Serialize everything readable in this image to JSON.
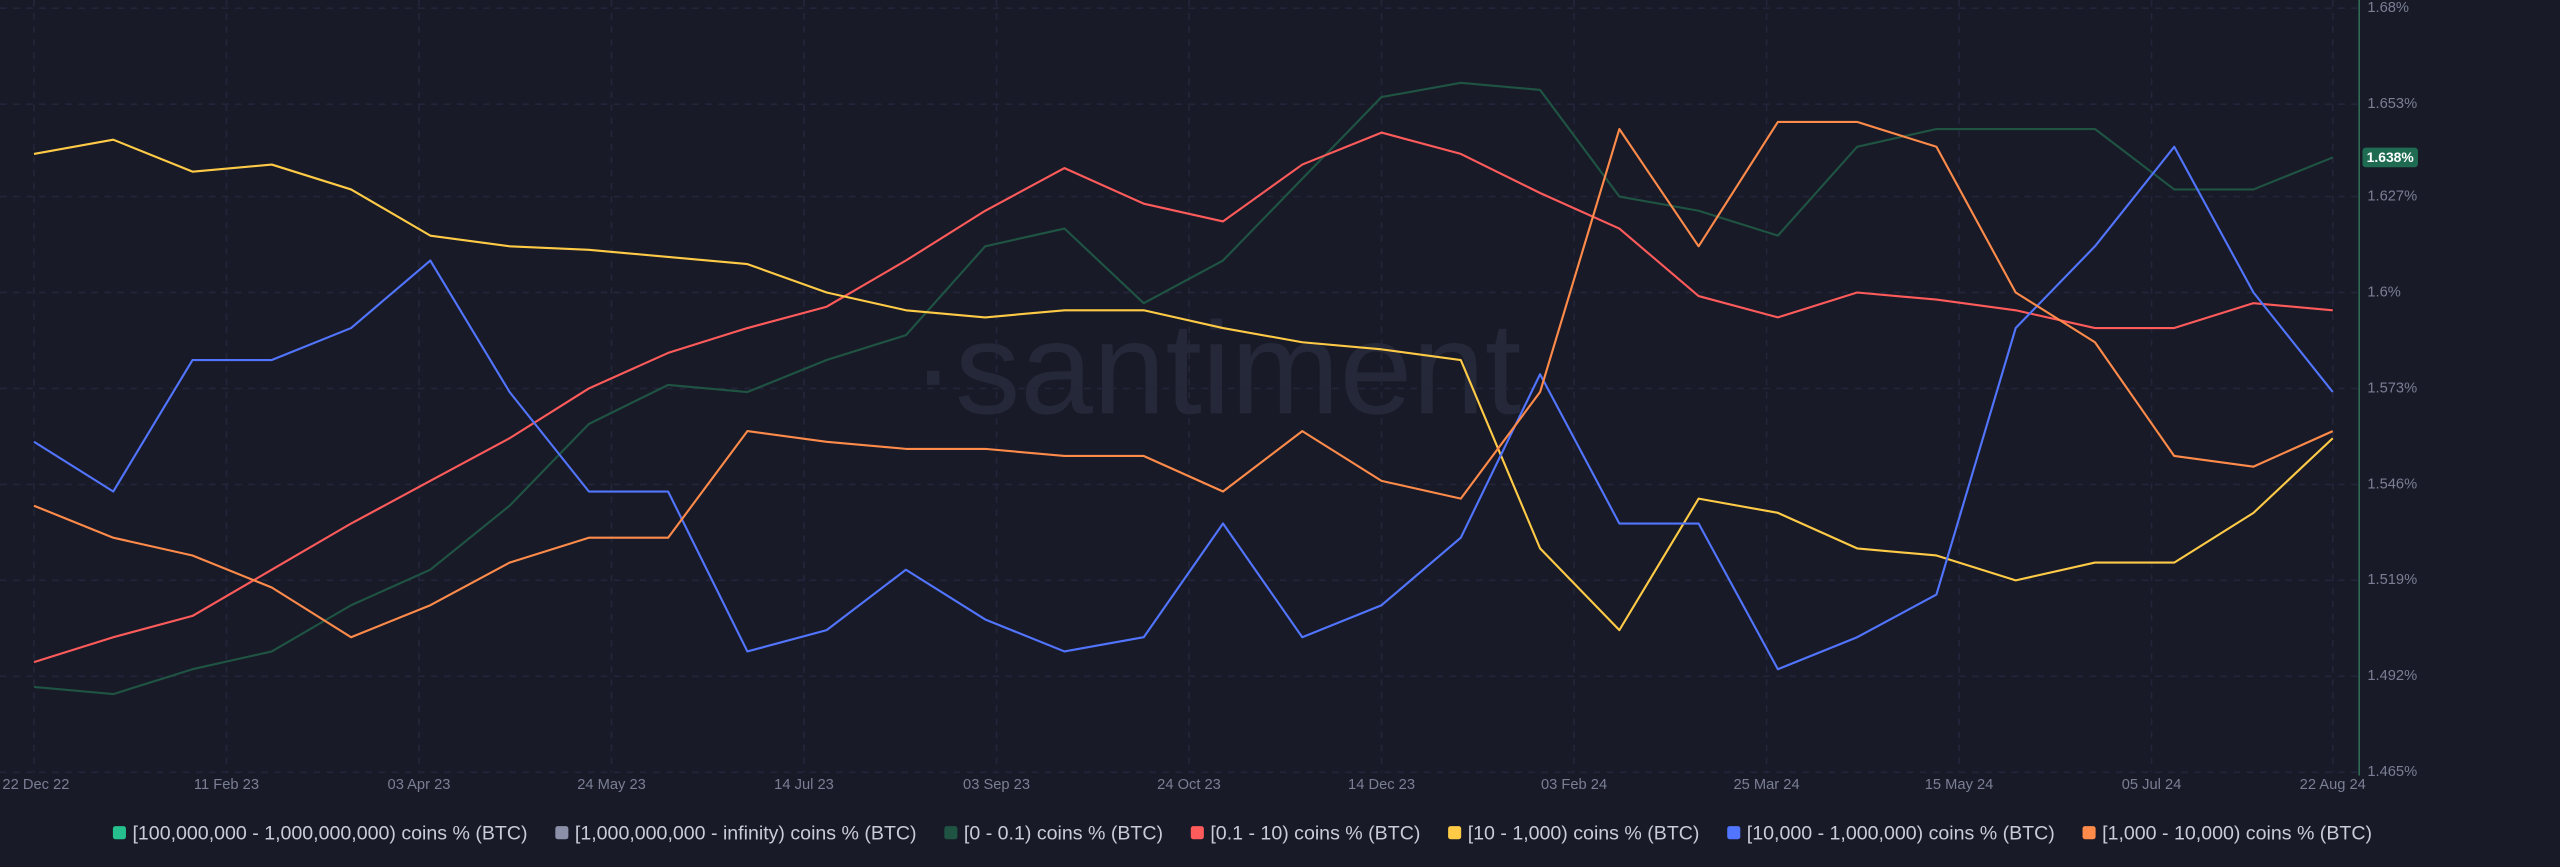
{
  "chart_data": {
    "type": "line",
    "watermark": "·santiment",
    "x": [
      "2022-12-22",
      "2023-01-12",
      "2023-02-02",
      "2023-02-23",
      "2023-03-16",
      "2023-04-06",
      "2023-04-27",
      "2023-05-18",
      "2023-06-08",
      "2023-06-29",
      "2023-07-20",
      "2023-08-10",
      "2023-08-31",
      "2023-09-21",
      "2023-10-12",
      "2023-11-02",
      "2023-11-23",
      "2023-12-14",
      "2024-01-04",
      "2024-01-25",
      "2024-02-15",
      "2024-03-07",
      "2024-03-28",
      "2024-04-18",
      "2024-05-09",
      "2024-05-30",
      "2024-06-20",
      "2024-07-11",
      "2024-08-01",
      "2024-08-22"
    ],
    "xlim": [
      "2022-12-13",
      "2024-08-29"
    ],
    "xticks": [
      {
        "value": "2022-12-22",
        "label": "22 Dec 22"
      },
      {
        "value": "2023-02-11",
        "label": "11 Feb 23"
      },
      {
        "value": "2023-04-03",
        "label": "03 Apr 23"
      },
      {
        "value": "2023-05-24",
        "label": "24 May 23"
      },
      {
        "value": "2023-07-14",
        "label": "14 Jul 23"
      },
      {
        "value": "2023-09-03",
        "label": "03 Sep 23"
      },
      {
        "value": "2023-10-24",
        "label": "24 Oct 23"
      },
      {
        "value": "2023-12-14",
        "label": "14 Dec 23"
      },
      {
        "value": "2024-02-03",
        "label": "03 Feb 24"
      },
      {
        "value": "2024-03-25",
        "label": "25 Mar 24"
      },
      {
        "value": "2024-05-15",
        "label": "15 May 24"
      },
      {
        "value": "2024-07-05",
        "label": "05 Jul 24"
      },
      {
        "value": "2024-08-22",
        "label": "22 Aug 24"
      }
    ],
    "ylim": [
      1.465,
      1.68
    ],
    "yticks": [
      {
        "value": 1.465,
        "label": "1.465%"
      },
      {
        "value": 1.492,
        "label": "1.492%"
      },
      {
        "value": 1.519,
        "label": "1.519%"
      },
      {
        "value": 1.546,
        "label": "1.546%"
      },
      {
        "value": 1.573,
        "label": "1.573%"
      },
      {
        "value": 1.6,
        "label": "1.6%"
      },
      {
        "value": 1.627,
        "label": "1.627%"
      },
      {
        "value": 1.653,
        "label": "1.653%"
      },
      {
        "value": 1.68,
        "label": "1.68%"
      }
    ],
    "grid": true,
    "legend": "bottom",
    "series": [
      {
        "name": "[100,000,000 - 1,000,000,000) coins % (BTC)",
        "color": "#26c08e",
        "values": [
          null,
          null,
          null,
          null,
          null,
          null,
          null,
          null,
          null,
          null,
          null,
          null,
          null,
          null,
          null,
          null,
          null,
          null,
          null,
          null,
          null,
          null,
          null,
          null,
          null,
          null,
          null,
          null,
          null,
          null
        ]
      },
      {
        "name": "[1,000,000,000 - infinity) coins % (BTC)",
        "color": "#8b8fa8",
        "values": [
          null,
          null,
          null,
          null,
          null,
          null,
          null,
          null,
          null,
          null,
          null,
          null,
          null,
          null,
          null,
          null,
          null,
          null,
          null,
          null,
          null,
          null,
          null,
          null,
          null,
          null,
          null,
          null,
          null,
          null
        ]
      },
      {
        "name": "[0 - 0.1) coins % (BTC)",
        "color": "#1f5443",
        "values": [
          1.489,
          1.487,
          1.494,
          1.499,
          1.512,
          1.522,
          1.54,
          1.563,
          1.574,
          1.572,
          1.581,
          1.588,
          1.613,
          1.618,
          1.597,
          1.609,
          1.632,
          1.655,
          1.659,
          1.657,
          1.627,
          1.623,
          1.616,
          1.641,
          1.646,
          1.646,
          1.646,
          1.629,
          1.629,
          1.638
        ],
        "value_labels": [
          null,
          null,
          null,
          null,
          null,
          null,
          null,
          null,
          null,
          null,
          null,
          null,
          null,
          null,
          null,
          null,
          null,
          null,
          null,
          null,
          null,
          null,
          null,
          null,
          null,
          null,
          null,
          null,
          null,
          "1.638%"
        ]
      },
      {
        "name": "[0.1 - 10) coins % (BTC)",
        "color": "#ff5b5b",
        "values": [
          1.496,
          1.503,
          1.509,
          1.522,
          1.535,
          1.547,
          1.559,
          1.573,
          1.583,
          1.59,
          1.596,
          1.609,
          1.623,
          1.635,
          1.625,
          1.62,
          1.636,
          1.645,
          1.639,
          1.628,
          1.618,
          1.599,
          1.593,
          1.6,
          1.598,
          1.595,
          1.59,
          1.59,
          1.597,
          1.595
        ]
      },
      {
        "name": "[10 - 1,000) coins % (BTC)",
        "color": "#ffcb47",
        "values": [
          1.639,
          1.643,
          1.634,
          1.636,
          1.629,
          1.616,
          1.613,
          1.612,
          1.61,
          1.608,
          1.6,
          1.595,
          1.593,
          1.595,
          1.595,
          1.59,
          1.586,
          1.584,
          1.581,
          1.528,
          1.505,
          1.542,
          1.538,
          1.528,
          1.526,
          1.519,
          1.524,
          1.524,
          1.538,
          1.559
        ]
      },
      {
        "name": "[10,000 - 1,000,000) coins % (BTC)",
        "color": "#5275ff",
        "values": [
          1.558,
          1.544,
          1.581,
          1.581,
          1.59,
          1.609,
          1.572,
          1.544,
          1.544,
          1.499,
          1.505,
          1.522,
          1.508,
          1.499,
          1.503,
          1.535,
          1.503,
          1.512,
          1.531,
          1.577,
          1.535,
          1.535,
          1.494,
          1.503,
          1.515,
          1.59,
          1.613,
          1.641,
          1.6,
          1.572
        ]
      },
      {
        "name": "[1,000 - 10,000) coins % (BTC)",
        "color": "#ff8b4a",
        "values": [
          1.54,
          1.531,
          1.526,
          1.517,
          1.503,
          1.512,
          1.524,
          1.531,
          1.531,
          1.561,
          1.558,
          1.556,
          1.556,
          1.554,
          1.554,
          1.544,
          1.561,
          1.547,
          1.542,
          1.572,
          1.646,
          1.613,
          1.648,
          1.648,
          1.641,
          1.6,
          1.586,
          1.554,
          1.551,
          1.561
        ]
      }
    ]
  }
}
